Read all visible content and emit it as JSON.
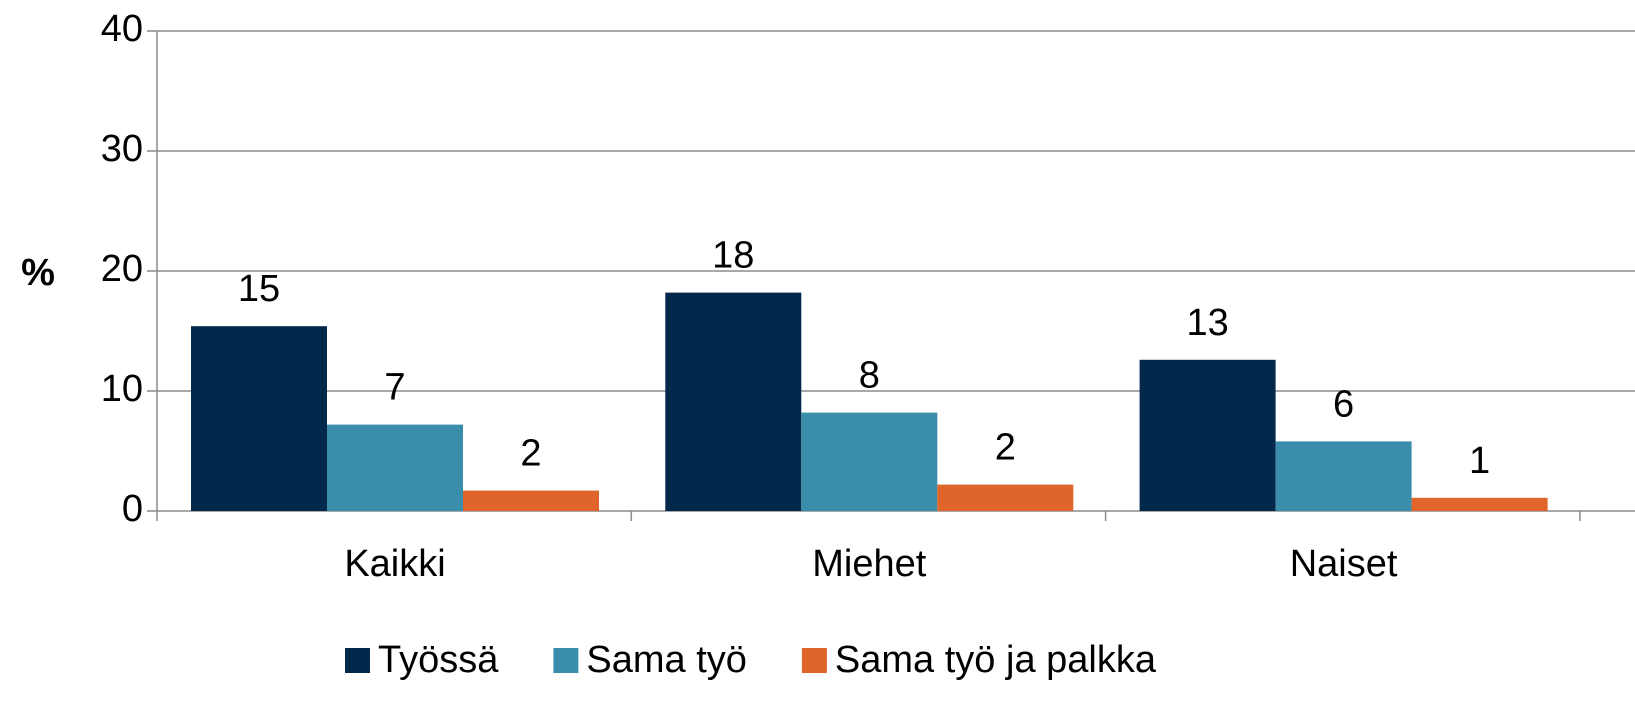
{
  "chart_data": {
    "type": "bar",
    "y_label": "%",
    "categories": [
      "Kaikki",
      "Miehet",
      "Naiset"
    ],
    "series": [
      {
        "name": "Työssä",
        "color": "#02284c",
        "values": [
          15.4,
          18.2,
          12.6
        ],
        "value_labels": [
          "15",
          "18",
          "13"
        ]
      },
      {
        "name": "Sama työ",
        "color": "#3a8eab",
        "values": [
          7.2,
          8.2,
          5.8
        ],
        "value_labels": [
          "7",
          "8",
          "6"
        ]
      },
      {
        "name": "Sama työ ja palkka",
        "color": "#e0652a",
        "values": [
          1.7,
          2.2,
          1.1
        ],
        "value_labels": [
          "2",
          "2",
          "1"
        ]
      }
    ],
    "ylim": [
      0,
      40
    ],
    "yticks": [
      0,
      10,
      20,
      30,
      40
    ],
    "grid": true,
    "legend": "bottom"
  }
}
